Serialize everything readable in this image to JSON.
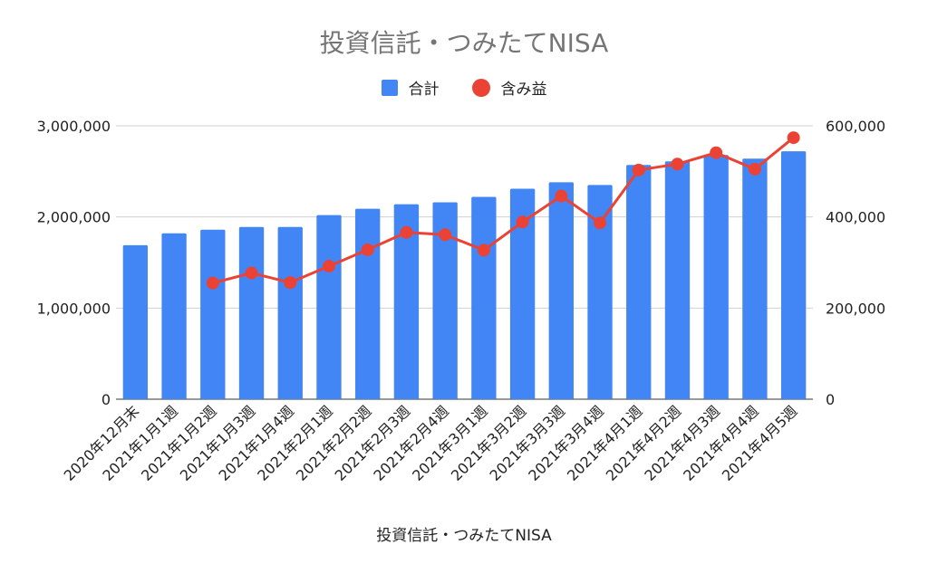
{
  "chart_data": {
    "type": "bar+line",
    "title": "投資信託・つみたてNISA",
    "xlabel": "投資信託・つみたてNISA",
    "categories": [
      "2020年12月末",
      "2021年1月1週",
      "2021年1月2週",
      "2021年1月3週",
      "2021年1月4週",
      "2021年2月1週",
      "2021年2月2週",
      "2021年2月3週",
      "2021年2月4週",
      "2021年3月1週",
      "2021年3月2週",
      "2021年3月3週",
      "2021年3月4週",
      "2021年4月1週",
      "2021年4月2週",
      "2021年4月3週",
      "2021年4月4週",
      "2021年4月5週"
    ],
    "series": [
      {
        "name": "合計",
        "type": "bar",
        "axis": "left",
        "color": "#4285f4",
        "values": [
          1690000,
          1820000,
          1860000,
          1890000,
          1890000,
          2020000,
          2090000,
          2140000,
          2160000,
          2220000,
          2310000,
          2380000,
          2350000,
          2570000,
          2610000,
          2680000,
          2640000,
          2720000
        ]
      },
      {
        "name": "含み益",
        "type": "line",
        "axis": "right",
        "color": "#ea4335",
        "values": [
          null,
          null,
          255000,
          277000,
          256000,
          292000,
          328000,
          366000,
          361000,
          327000,
          389000,
          446000,
          387000,
          503000,
          516000,
          541000,
          505000,
          574000
        ]
      }
    ],
    "y_left": {
      "ylim": [
        0,
        3000000
      ],
      "ticks": [
        "0",
        "1,000,000",
        "2,000,000",
        "3,000,000"
      ]
    },
    "y_right": {
      "ylim": [
        0,
        600000
      ],
      "ticks": [
        "0",
        "200,000",
        "400,000",
        "600,000"
      ]
    },
    "grid": true,
    "legend": "top-center"
  }
}
